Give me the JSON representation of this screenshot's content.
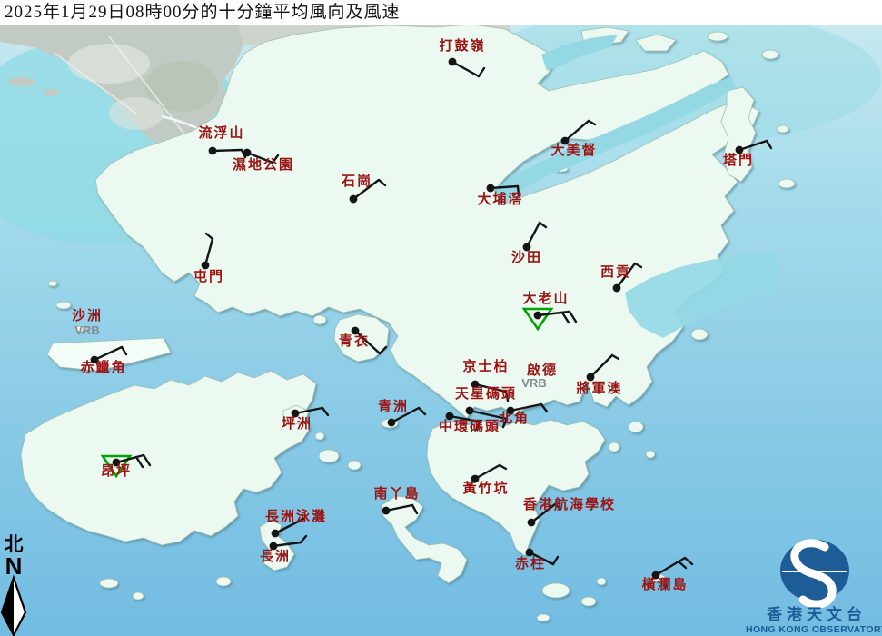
{
  "title": "2025年1月29日08時00分的十分鐘平均風向及風速",
  "map": {
    "compass": {
      "chinese": "北",
      "letter": "N"
    },
    "logo": {
      "chinese": "香港天文台",
      "english": "HONG KONG OBSERVATORY"
    },
    "variable_label": "VRB",
    "colors": {
      "station_label": "#9b1414",
      "vrb_grey": "#85898e",
      "barb": "#141414",
      "triangle": "#00a400",
      "logo_blue": "#1d5c96",
      "sea_top": "#c9eaf1",
      "sea_bottom": "#72bce2",
      "land": "#ebf9f1",
      "urban": "#c2cbc3",
      "shallow": "#93d8e4"
    },
    "stations": [
      {
        "name": "打鼓嶺",
        "dot": [
          498,
          68
        ],
        "label": [
          509,
          55
        ],
        "segments": [
          [
            498,
            68,
            527,
            84
          ],
          [
            527,
            84,
            533,
            75
          ]
        ]
      },
      {
        "name": "流浮山",
        "dot": [
          234,
          166
        ],
        "label": [
          244,
          151
        ],
        "segments": [
          [
            234,
            166,
            266,
            165
          ],
          [
            266,
            165,
            270,
            173
          ]
        ]
      },
      {
        "name": "濕地公園",
        "dot": [
          272,
          168
        ],
        "label": [
          290,
          186
        ],
        "segments": [
          [
            272,
            168,
            300,
            179
          ],
          [
            300,
            179,
            306,
            171
          ]
        ]
      },
      {
        "name": "石崗",
        "dot": [
          389,
          219
        ],
        "label": [
          393,
          204
        ],
        "segments": [
          [
            389,
            219,
            417,
            198
          ],
          [
            417,
            198,
            424,
            204
          ]
        ]
      },
      {
        "name": "大美督",
        "dot": [
          622,
          155
        ],
        "label": [
          632,
          170
        ],
        "segments": [
          [
            622,
            155,
            648,
            133
          ],
          [
            648,
            133,
            655,
            137
          ]
        ]
      },
      {
        "name": "塔門",
        "dot": [
          814,
          165
        ],
        "label": [
          813,
          181
        ],
        "segments": [
          [
            814,
            165,
            844,
            155
          ],
          [
            844,
            155,
            849,
            163
          ]
        ]
      },
      {
        "name": "大埔滘",
        "dot": [
          540,
          207
        ],
        "label": [
          551,
          224
        ],
        "segments": [
          [
            540,
            207,
            570,
            205
          ],
          [
            570,
            205,
            571,
            215
          ]
        ]
      },
      {
        "name": "沙田",
        "dot": [
          580,
          272
        ],
        "label": [
          580,
          288
        ],
        "segments": [
          [
            580,
            272,
            594,
            245
          ],
          [
            594,
            245,
            601,
            250
          ]
        ]
      },
      {
        "name": "屯門",
        "dot": [
          226,
          292
        ],
        "label": [
          230,
          309
        ],
        "segments": [
          [
            226,
            292,
            234,
            263
          ],
          [
            234,
            263,
            227,
            257
          ]
        ]
      },
      {
        "name": "西貢",
        "dot": [
          679,
          317
        ],
        "label": [
          678,
          304
        ],
        "segments": [
          [
            679,
            317,
            699,
            290
          ],
          [
            699,
            290,
            706,
            294
          ]
        ]
      },
      {
        "name": "大老山",
        "dot": [
          592,
          347
        ],
        "label": [
          601,
          333
        ],
        "triangle": [
          [
            577,
            340
          ],
          [
            607,
            340
          ],
          [
            592,
            362
          ]
        ],
        "segments": [
          [
            592,
            347,
            627,
            343
          ],
          [
            627,
            343,
            634,
            354
          ],
          [
            619,
            344,
            626,
            355
          ]
        ]
      },
      {
        "name": "沙洲",
        "dot": null,
        "label": [
          96,
          352
        ],
        "vrb": [
          96,
          368
        ],
        "segments": []
      },
      {
        "name": "赤鱲角",
        "dot": [
          104,
          396
        ],
        "label": [
          114,
          409
        ],
        "segments": [
          [
            104,
            396,
            134,
            382
          ],
          [
            134,
            382,
            139,
            390
          ]
        ]
      },
      {
        "name": "青衣",
        "dot": [
          391,
          364
        ],
        "label": [
          390,
          380
        ],
        "segments": [
          [
            391,
            364,
            418,
            389
          ],
          [
            418,
            389,
            425,
            382
          ]
        ]
      },
      {
        "name": "京士柏",
        "dot": [
          523,
          423
        ],
        "label": [
          535,
          408
        ],
        "segments": [
          [
            523,
            423,
            557,
            431
          ],
          [
            557,
            431,
            559,
            441
          ]
        ]
      },
      {
        "name": "啟德",
        "dot": null,
        "label": [
          597,
          412
        ],
        "vrb": [
          588,
          426
        ],
        "segments": []
      },
      {
        "name": "天星碼頭",
        "dot": [
          517,
          452
        ],
        "label": [
          535,
          438
        ],
        "segments": [
          [
            517,
            452,
            558,
            461
          ],
          [
            558,
            461,
            554,
            470
          ]
        ]
      },
      {
        "name": "將軍澳",
        "dot": [
          650,
          415
        ],
        "label": [
          660,
          432
        ],
        "segments": [
          [
            650,
            415,
            674,
            391
          ],
          [
            674,
            391,
            681,
            395
          ]
        ]
      },
      {
        "name": "青洲",
        "dot": [
          431,
          465
        ],
        "label": [
          433,
          452
        ],
        "segments": [
          [
            431,
            465,
            461,
            449
          ],
          [
            461,
            449,
            468,
            456
          ]
        ]
      },
      {
        "name": "中環碼頭",
        "dot": [
          495,
          458
        ],
        "label": [
          517,
          474
        ],
        "segments": [
          [
            495,
            458,
            528,
            464
          ],
          [
            528,
            464,
            525,
            473
          ]
        ]
      },
      {
        "name": "北角",
        "dot": [
          562,
          452
        ],
        "label": [
          566,
          465
        ],
        "segments": [
          [
            562,
            452,
            596,
            445
          ],
          [
            596,
            445,
            602,
            453
          ]
        ]
      },
      {
        "name": "坪洲",
        "dot": [
          325,
          455
        ],
        "label": [
          327,
          471
        ],
        "segments": [
          [
            325,
            455,
            355,
            449
          ],
          [
            355,
            449,
            361,
            457
          ]
        ]
      },
      {
        "name": "昂坪",
        "dot": [
          128,
          509
        ],
        "label": [
          128,
          523
        ],
        "triangle": [
          [
            113,
            502
          ],
          [
            143,
            502
          ],
          [
            128,
            524
          ]
        ],
        "segments": [
          [
            128,
            509,
            158,
            501
          ],
          [
            158,
            501,
            165,
            512
          ],
          [
            150,
            503,
            157,
            514
          ]
        ]
      },
      {
        "name": "黃竹坑",
        "dot": [
          523,
          527
        ],
        "label": [
          535,
          542
        ],
        "segments": [
          [
            523,
            527,
            550,
            512
          ],
          [
            550,
            512,
            557,
            516
          ]
        ]
      },
      {
        "name": "南丫島",
        "dot": [
          425,
          562
        ],
        "label": [
          437,
          548
        ],
        "segments": [
          [
            425,
            562,
            454,
            556
          ],
          [
            454,
            556,
            459,
            565
          ]
        ]
      },
      {
        "name": "香港航海學校",
        "dot": [
          585,
          575
        ],
        "label": [
          627,
          560
        ],
        "segments": [
          [
            585,
            575,
            611,
            555
          ],
          [
            611,
            555,
            617,
            560
          ]
        ]
      },
      {
        "name": "長洲泳灘",
        "dot": [
          303,
          587
        ],
        "label": [
          326,
          573
        ],
        "segments": [
          [
            303,
            587,
            334,
            571
          ]
        ]
      },
      {
        "name": "長洲",
        "dot": [
          301,
          601
        ],
        "label": [
          303,
          617
        ],
        "segments": [
          [
            301,
            601,
            331,
            597
          ],
          [
            331,
            597,
            337,
            590
          ]
        ]
      },
      {
        "name": "赤柱",
        "dot": [
          583,
          608
        ],
        "label": [
          584,
          625
        ],
        "segments": [
          [
            583,
            608,
            609,
            621
          ],
          [
            609,
            621,
            614,
            613
          ]
        ]
      },
      {
        "name": "橫瀾島",
        "dot": [
          722,
          633
        ],
        "label": [
          732,
          648
        ],
        "segments": [
          [
            722,
            633,
            754,
            614
          ],
          [
            754,
            614,
            762,
            621
          ],
          [
            747,
            618,
            755,
            625
          ]
        ]
      }
    ]
  }
}
